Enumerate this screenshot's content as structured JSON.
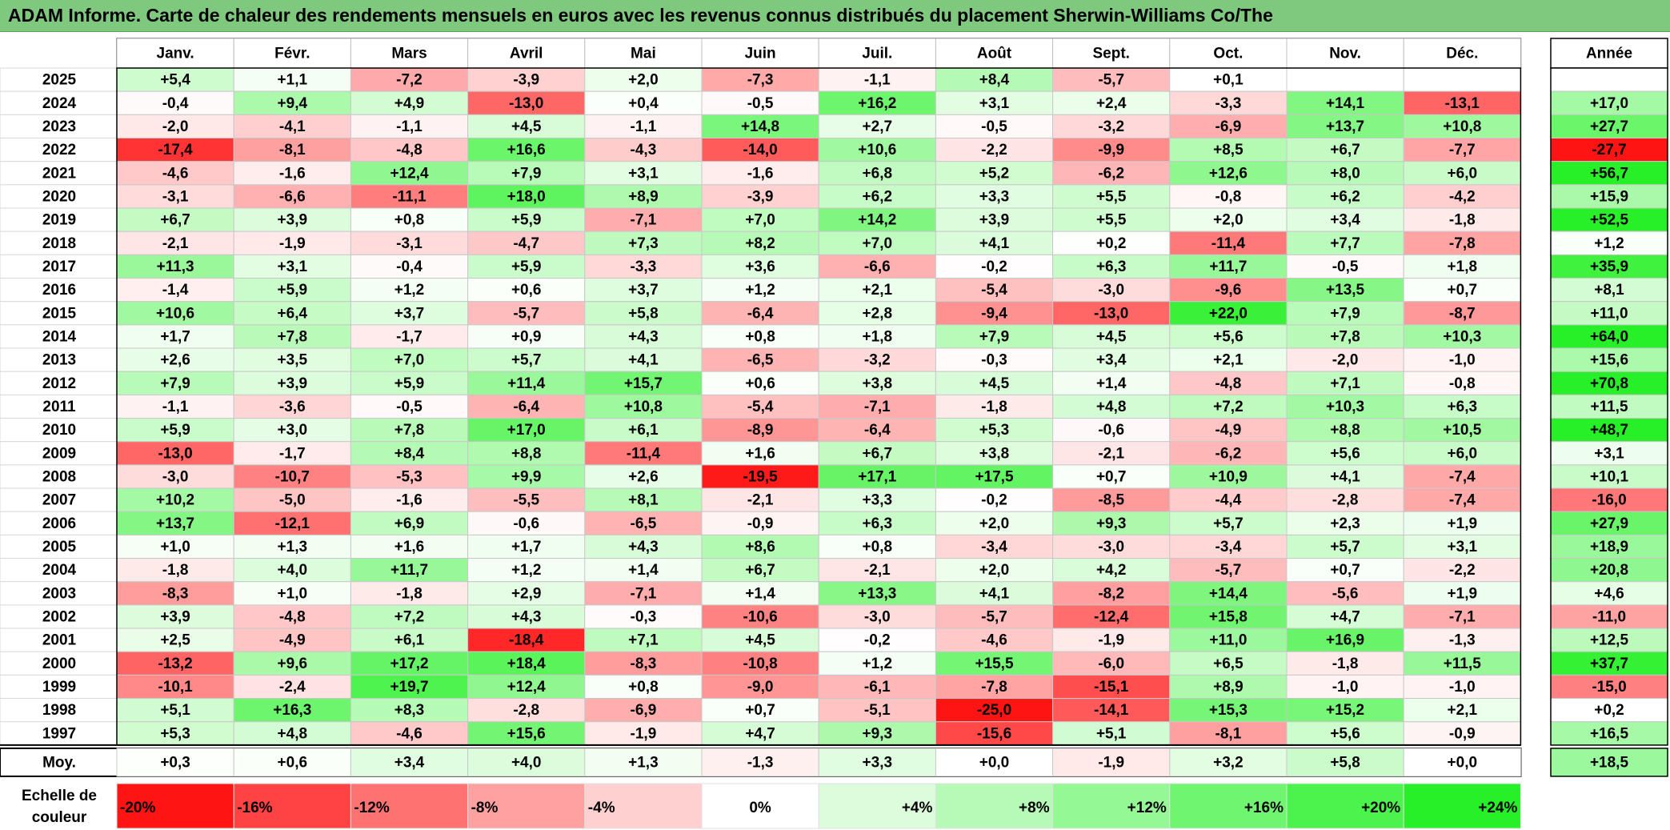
{
  "title": "ADAM Informe. Carte de chaleur des rendements mensuels en euros avec les revenus connus distribués du placement Sherwin-Williams Co/The",
  "chart_data": {
    "type": "heatmap",
    "months": [
      "Janv.",
      "Févr.",
      "Mars",
      "Avril",
      "Mai",
      "Juin",
      "Juil.",
      "Août",
      "Sept.",
      "Oct.",
      "Nov.",
      "Déc."
    ],
    "year_header": "Année",
    "rows": [
      {
        "year": "2025",
        "values": [
          "+5,4",
          "+1,1",
          "-7,2",
          "-3,9",
          "+2,0",
          "-7,3",
          "-1,1",
          "+8,4",
          "-5,7",
          "+0,1",
          "",
          ""
        ],
        "annual": ""
      },
      {
        "year": "2024",
        "values": [
          "-0,4",
          "+9,4",
          "+4,9",
          "-13,0",
          "+0,4",
          "-0,5",
          "+16,2",
          "+3,1",
          "+2,4",
          "-3,3",
          "+14,1",
          "-13,1"
        ],
        "annual": "+17,0"
      },
      {
        "year": "2023",
        "values": [
          "-2,0",
          "-4,1",
          "-1,1",
          "+4,5",
          "-1,1",
          "+14,8",
          "+2,7",
          "-0,5",
          "-3,2",
          "-6,9",
          "+13,7",
          "+10,8"
        ],
        "annual": "+27,7"
      },
      {
        "year": "2022",
        "values": [
          "-17,4",
          "-8,1",
          "-4,8",
          "+16,6",
          "-4,3",
          "-14,0",
          "+10,6",
          "-2,2",
          "-9,9",
          "+8,5",
          "+6,7",
          "-7,7"
        ],
        "annual": "-27,7"
      },
      {
        "year": "2021",
        "values": [
          "-4,6",
          "-1,6",
          "+12,4",
          "+7,9",
          "+3,1",
          "-1,6",
          "+6,8",
          "+5,2",
          "-6,2",
          "+12,6",
          "+8,0",
          "+6,0"
        ],
        "annual": "+56,7"
      },
      {
        "year": "2020",
        "values": [
          "-3,1",
          "-6,6",
          "-11,1",
          "+18,0",
          "+8,9",
          "-3,9",
          "+6,2",
          "+3,3",
          "+5,5",
          "-0,8",
          "+6,2",
          "-4,2"
        ],
        "annual": "+15,9"
      },
      {
        "year": "2019",
        "values": [
          "+6,7",
          "+3,9",
          "+0,8",
          "+5,9",
          "-7,1",
          "+7,0",
          "+14,2",
          "+3,9",
          "+5,5",
          "+2,0",
          "+3,4",
          "-1,8"
        ],
        "annual": "+52,5"
      },
      {
        "year": "2018",
        "values": [
          "-2,1",
          "-1,9",
          "-3,1",
          "-4,7",
          "+7,3",
          "+8,2",
          "+7,0",
          "+4,1",
          "+0,2",
          "-11,4",
          "+7,7",
          "-7,8"
        ],
        "annual": "+1,2"
      },
      {
        "year": "2017",
        "values": [
          "+11,3",
          "+3,1",
          "-0,4",
          "+5,9",
          "-3,3",
          "+3,6",
          "-6,6",
          "-0,2",
          "+6,3",
          "+11,7",
          "-0,5",
          "+1,8"
        ],
        "annual": "+35,9"
      },
      {
        "year": "2016",
        "values": [
          "-1,4",
          "+5,9",
          "+1,2",
          "+0,6",
          "+3,7",
          "+1,2",
          "+2,1",
          "-5,4",
          "-3,0",
          "-9,6",
          "+13,5",
          "+0,7"
        ],
        "annual": "+8,1"
      },
      {
        "year": "2015",
        "values": [
          "+10,6",
          "+6,4",
          "+3,7",
          "-5,7",
          "+5,8",
          "-6,4",
          "+2,8",
          "-9,4",
          "-13,0",
          "+22,0",
          "+7,9",
          "-8,7"
        ],
        "annual": "+11,0"
      },
      {
        "year": "2014",
        "values": [
          "+1,7",
          "+7,8",
          "-1,7",
          "+0,9",
          "+4,3",
          "+0,8",
          "+1,8",
          "+7,9",
          "+4,5",
          "+5,6",
          "+7,8",
          "+10,3"
        ],
        "annual": "+64,0"
      },
      {
        "year": "2013",
        "values": [
          "+2,6",
          "+3,5",
          "+7,0",
          "+5,7",
          "+4,1",
          "-6,5",
          "-3,2",
          "-0,3",
          "+3,4",
          "+2,1",
          "-2,0",
          "-1,0"
        ],
        "annual": "+15,6"
      },
      {
        "year": "2012",
        "values": [
          "+7,9",
          "+3,9",
          "+5,9",
          "+11,4",
          "+15,7",
          "+0,6",
          "+3,8",
          "+4,5",
          "+1,4",
          "-4,8",
          "+7,1",
          "-0,8"
        ],
        "annual": "+70,8"
      },
      {
        "year": "2011",
        "values": [
          "-1,1",
          "-3,6",
          "-0,5",
          "-6,4",
          "+10,8",
          "-5,4",
          "-7,1",
          "-1,8",
          "+4,8",
          "+7,2",
          "+10,3",
          "+6,3"
        ],
        "annual": "+11,5"
      },
      {
        "year": "2010",
        "values": [
          "+5,9",
          "+3,0",
          "+7,8",
          "+17,0",
          "+6,1",
          "-8,9",
          "-6,4",
          "+5,3",
          "-0,6",
          "-4,9",
          "+8,8",
          "+10,5"
        ],
        "annual": "+48,7"
      },
      {
        "year": "2009",
        "values": [
          "-13,0",
          "-1,7",
          "+8,4",
          "+8,8",
          "-11,4",
          "+1,6",
          "+6,7",
          "+3,8",
          "-2,1",
          "-6,2",
          "+5,6",
          "+6,0"
        ],
        "annual": "+3,1"
      },
      {
        "year": "2008",
        "values": [
          "-3,0",
          "-10,7",
          "-5,3",
          "+9,9",
          "+2,6",
          "-19,5",
          "+17,1",
          "+17,5",
          "+0,7",
          "+10,9",
          "+4,1",
          "-7,4"
        ],
        "annual": "+10,1"
      },
      {
        "year": "2007",
        "values": [
          "+10,2",
          "-5,0",
          "-1,6",
          "-5,5",
          "+8,1",
          "-2,1",
          "+3,3",
          "-0,2",
          "-8,5",
          "-4,4",
          "-2,8",
          "-7,4"
        ],
        "annual": "-16,0"
      },
      {
        "year": "2006",
        "values": [
          "+13,7",
          "-12,1",
          "+6,9",
          "-0,6",
          "-6,5",
          "-0,9",
          "+6,3",
          "+2,0",
          "+9,3",
          "+5,7",
          "+2,3",
          "+1,9"
        ],
        "annual": "+27,9"
      },
      {
        "year": "2005",
        "values": [
          "+1,0",
          "+1,3",
          "+1,6",
          "+1,7",
          "+4,3",
          "+8,6",
          "+0,8",
          "-3,4",
          "-3,0",
          "-3,4",
          "+5,7",
          "+3,1"
        ],
        "annual": "+18,9"
      },
      {
        "year": "2004",
        "values": [
          "-1,8",
          "+4,0",
          "+11,7",
          "+1,2",
          "+1,4",
          "+6,7",
          "-2,1",
          "+2,0",
          "+4,2",
          "-5,7",
          "+0,7",
          "-2,2"
        ],
        "annual": "+20,8"
      },
      {
        "year": "2003",
        "values": [
          "-8,3",
          "+1,0",
          "-1,8",
          "+2,9",
          "-7,1",
          "+1,4",
          "+13,3",
          "+4,1",
          "-8,2",
          "+14,4",
          "-5,6",
          "+1,9"
        ],
        "annual": "+4,6"
      },
      {
        "year": "2002",
        "values": [
          "+3,9",
          "-4,8",
          "+7,2",
          "+4,3",
          "-0,3",
          "-10,6",
          "-3,0",
          "-5,7",
          "-12,4",
          "+15,8",
          "+4,7",
          "-7,1"
        ],
        "annual": "-11,0"
      },
      {
        "year": "2001",
        "values": [
          "+2,5",
          "-4,9",
          "+6,1",
          "-18,4",
          "+7,1",
          "+4,5",
          "-0,2",
          "-4,6",
          "-1,9",
          "+11,0",
          "+16,9",
          "-1,3"
        ],
        "annual": "+12,5"
      },
      {
        "year": "2000",
        "values": [
          "-13,2",
          "+9,6",
          "+17,2",
          "+18,4",
          "-8,3",
          "-10,8",
          "+1,2",
          "+15,5",
          "-6,0",
          "+6,5",
          "-1,8",
          "+11,5"
        ],
        "annual": "+37,7"
      },
      {
        "year": "1999",
        "values": [
          "-10,1",
          "-2,4",
          "+19,7",
          "+12,4",
          "+0,8",
          "-9,0",
          "-6,1",
          "-7,8",
          "-15,1",
          "+8,9",
          "-1,0",
          "-1,0"
        ],
        "annual": "-15,0"
      },
      {
        "year": "1998",
        "values": [
          "+5,1",
          "+16,3",
          "+8,3",
          "-2,8",
          "-6,9",
          "+0,7",
          "-5,1",
          "-25,0",
          "-14,1",
          "+15,3",
          "+15,2",
          "+2,1"
        ],
        "annual": "+0,2"
      },
      {
        "year": "1997",
        "values": [
          "+5,3",
          "+4,8",
          "-4,6",
          "+15,6",
          "-1,9",
          "+4,7",
          "+9,3",
          "-15,6",
          "+5,1",
          "-8,1",
          "+5,6",
          "-0,9"
        ],
        "annual": "+16,5"
      }
    ],
    "average": {
      "label": "Moy.",
      "values": [
        "+0,3",
        "+0,6",
        "+3,4",
        "+4,0",
        "+1,3",
        "-1,3",
        "+3,3",
        "+0,0",
        "-1,9",
        "+3,2",
        "+5,8",
        "+0,0"
      ],
      "annual": "+18,5"
    },
    "scale": {
      "label_line1": "Echelle de",
      "label_line2": "couleur",
      "stops": [
        "-20%",
        "-16%",
        "-12%",
        "-8%",
        "-4%",
        "0%",
        "+4%",
        "+8%",
        "+12%",
        "+16%",
        "+20%",
        "+24%"
      ]
    }
  }
}
